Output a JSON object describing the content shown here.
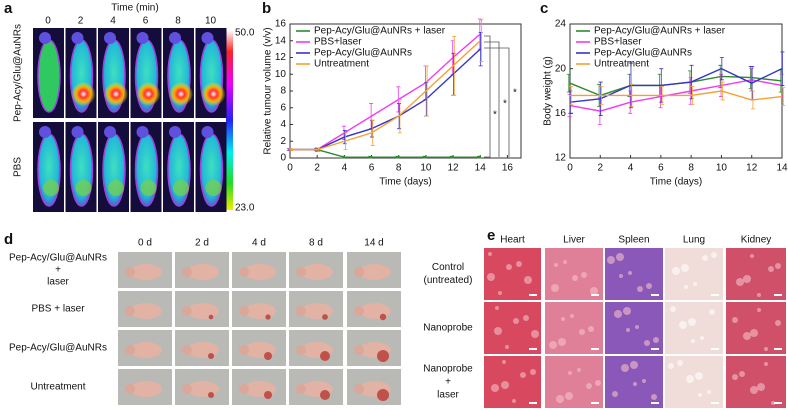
{
  "panel_a": {
    "label": "a",
    "title": "Time (min)",
    "times": [
      "0",
      "2",
      "4",
      "6",
      "8",
      "10"
    ],
    "rows": [
      "Pep-Acy/Glu@AuNRs",
      "PBS"
    ],
    "colorbar": [
      "50.0",
      "23.0"
    ]
  },
  "chart_data": [
    {
      "type": "line",
      "label": "b",
      "xlabel": "Time (days)",
      "ylabel": "Relative tumour volume (v/v)",
      "x": [
        0,
        2,
        4,
        6,
        8,
        10,
        12,
        14
      ],
      "xlim": [
        0,
        17
      ],
      "ylim": [
        0,
        16
      ],
      "xticks": [
        0,
        2,
        4,
        6,
        8,
        10,
        12,
        14,
        16
      ],
      "yticks": [
        0,
        2,
        4,
        6,
        8,
        10,
        12,
        14,
        16
      ],
      "legend": "top-left",
      "annotations": [
        "*",
        "*",
        "*"
      ],
      "series": [
        {
          "name": "Pep-Acy/Glu@AuNRs + laser",
          "color": "#2e8b2e",
          "values": [
            1,
            1,
            0.1,
            0.1,
            0.1,
            0.1,
            0.1,
            0.1
          ],
          "errors": [
            0.1,
            0.1,
            0.1,
            0.1,
            0.1,
            0.1,
            0.1,
            0.1
          ]
        },
        {
          "name": "PBS+laser",
          "color": "#f03cf0",
          "values": [
            1,
            1,
            3,
            5,
            7,
            9,
            12,
            14.8
          ],
          "errors": [
            0.1,
            0.2,
            0.8,
            1.5,
            1.5,
            2,
            2,
            1.8
          ]
        },
        {
          "name": "Pep-Acy/Glu@AuNRs",
          "color": "#3535c8",
          "values": [
            1,
            1,
            2.5,
            3.5,
            5,
            7,
            10,
            13
          ],
          "errors": [
            0.1,
            0.2,
            0.8,
            1,
            1.5,
            2,
            2.5,
            2
          ]
        },
        {
          "name": "Untreatment",
          "color": "#f5a030",
          "values": [
            1,
            1,
            2,
            3,
            5,
            8,
            11,
            14
          ],
          "errors": [
            0.1,
            0.2,
            1,
            1.5,
            2,
            3,
            3.5,
            2.5
          ]
        }
      ]
    },
    {
      "type": "line",
      "label": "c",
      "xlabel": "Time (days)",
      "ylabel": "Body weight (g)",
      "x": [
        0,
        2,
        4,
        6,
        8,
        10,
        12,
        14
      ],
      "xlim": [
        0,
        14
      ],
      "ylim": [
        12,
        24
      ],
      "xticks": [
        0,
        2,
        4,
        6,
        8,
        10,
        12,
        14
      ],
      "yticks": [
        12,
        16,
        20,
        24
      ],
      "legend": "top-left",
      "series": [
        {
          "name": "Pep-Acy/Glu@AuNRs + laser",
          "color": "#2e8b2e",
          "values": [
            18.7,
            17.6,
            18.5,
            18.5,
            18.8,
            19.3,
            19.2,
            18.9
          ],
          "errors": [
            0.8,
            1,
            1,
            1,
            1,
            1,
            1,
            1
          ]
        },
        {
          "name": "PBS+laser",
          "color": "#f03cf0",
          "values": [
            16.7,
            16.2,
            17,
            17.5,
            18,
            18.5,
            19,
            18.5
          ],
          "errors": [
            1,
            1.2,
            1,
            1,
            1.2,
            1,
            1,
            1
          ]
        },
        {
          "name": "Pep-Acy/Glu@AuNRs",
          "color": "#3535c8",
          "values": [
            17,
            17.3,
            18.5,
            18.5,
            18.8,
            20,
            18.7,
            20
          ],
          "errors": [
            1,
            1.5,
            2,
            1.5,
            1.5,
            1,
            1.5,
            1.5
          ]
        },
        {
          "name": "Untreatment",
          "color": "#f5a030",
          "values": [
            17.6,
            17.6,
            17.6,
            17.6,
            17.6,
            18,
            17.2,
            17.5
          ],
          "errors": [
            0.8,
            0.8,
            1,
            0.8,
            0.8,
            0.8,
            0.8,
            0.8
          ]
        }
      ]
    }
  ],
  "panel_d": {
    "label": "d",
    "days": [
      "0 d",
      "2 d",
      "4 d",
      "8 d",
      "14 d"
    ],
    "rows": [
      [
        "Pep-Acy/Glu@AuNRs",
        "+",
        "laser"
      ],
      [
        "PBS + laser"
      ],
      [
        "Pep-Acy/Glu@AuNRs"
      ],
      [
        "Untreatment"
      ]
    ]
  },
  "panel_e": {
    "label": "e",
    "organs": [
      "Heart",
      "Liver",
      "Spleen",
      "Lung",
      "Kidney"
    ],
    "rows": [
      [
        "Control",
        "(untreated)"
      ],
      [
        "Nanoprobe"
      ],
      [
        "Nanoprobe",
        "+",
        "laser"
      ]
    ]
  }
}
